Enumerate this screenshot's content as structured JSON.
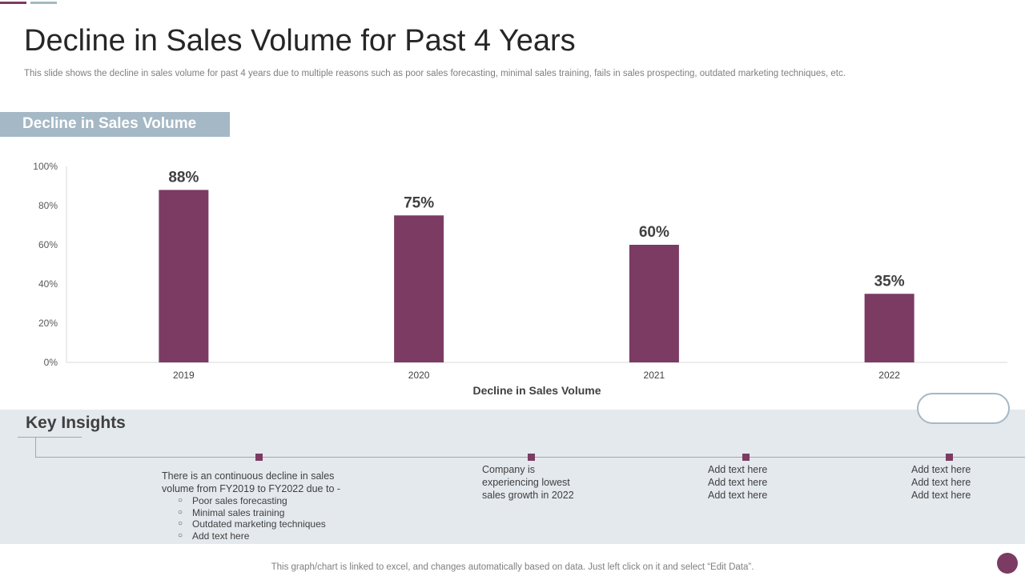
{
  "colors": {
    "bar": "#7b3b63",
    "accent": "#7b3b63",
    "tab_bg": "#a5b8c5",
    "insights_bg": "#e4e9ed",
    "accent2": "#a5b8c5"
  },
  "slide": {
    "title": "Decline in Sales Volume for Past 4 Years",
    "subtitle": "This slide shows the decline in sales volume for past 4 years due to multiple reasons such as poor sales forecasting, minimal sales training, fails in sales prospecting, outdated marketing techniques, etc.",
    "section_tab": "Decline in Sales Volume",
    "footer": "This graph/chart is linked to excel,  and changes automatically based on data. Just left click on it and select “Edit Data”."
  },
  "chart_data": {
    "type": "bar",
    "categories": [
      "2019",
      "2020",
      "2021",
      "2022"
    ],
    "values": [
      88,
      75,
      60,
      35
    ],
    "data_labels": [
      "88%",
      "75%",
      "60%",
      "35%"
    ],
    "xlabel": "Decline in Sales Volume",
    "ylabel": "",
    "ylim": [
      0,
      100
    ],
    "yticks": [
      0,
      20,
      40,
      60,
      80,
      100
    ],
    "ytick_labels": [
      "0%",
      "20%",
      "40%",
      "60%",
      "80%",
      "100%"
    ],
    "grid": false,
    "legend": "none"
  },
  "insights": {
    "title": "Key Insights",
    "item1": {
      "line1": "There is an continuous decline in sales",
      "line2": "volume from FY2019 to FY2022 due to -",
      "bullets": [
        "Poor sales forecasting",
        "Minimal sales training",
        "Outdated marketing techniques",
        "Add text here"
      ]
    },
    "item2": {
      "line1": "Company is",
      "line2": "experiencing lowest",
      "line3": "sales growth in 2022"
    },
    "item3": {
      "line1": "Add text here",
      "line2": "Add text here",
      "line3": "Add text here"
    },
    "item4": {
      "line1": "Add text here",
      "line2": "Add text here",
      "line3": "Add text here"
    }
  }
}
